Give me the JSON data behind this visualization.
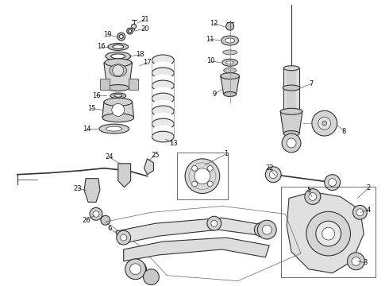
{
  "background_color": "#f5f5f5",
  "fig_width": 4.9,
  "fig_height": 3.6,
  "dpi": 100,
  "line_color": "#333333",
  "label_fontsize": 6.0,
  "label_color": "#111111",
  "gray_fill": "#c8c8c8",
  "gray_light": "#e8e8e8",
  "gray_mid": "#b0b0b0"
}
